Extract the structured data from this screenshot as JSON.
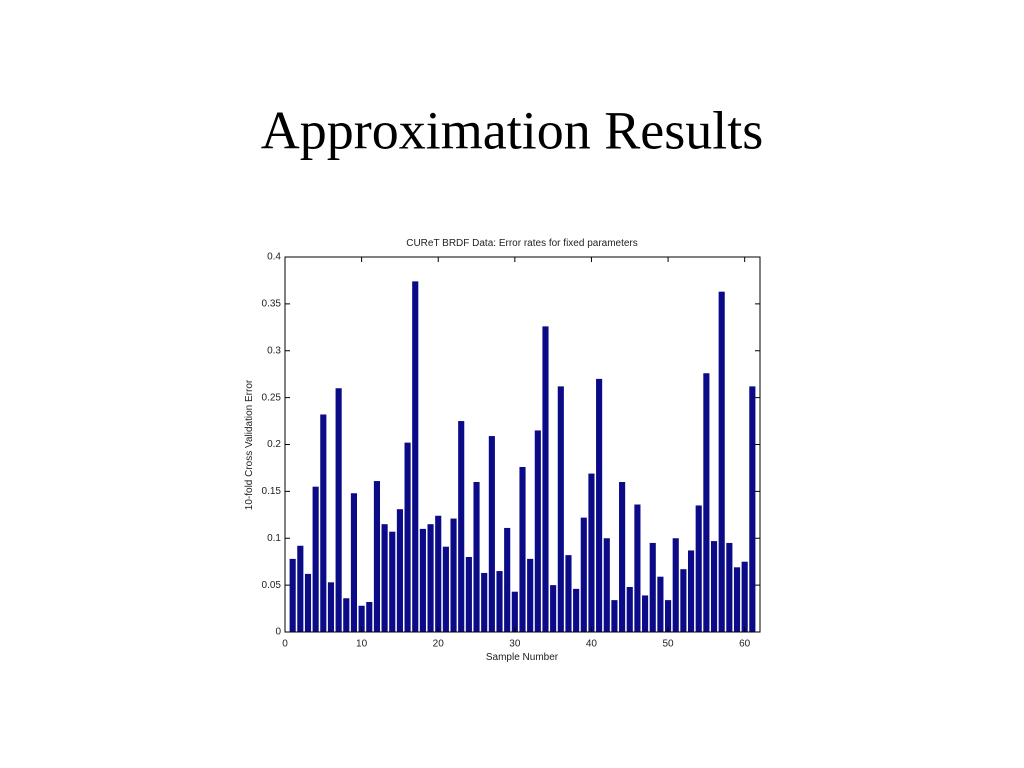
{
  "slide_title": "Approximation Results",
  "chart_data": {
    "type": "bar",
    "title": "CUReT BRDF Data: Error rates for fixed parameters",
    "x_label": "Sample Number",
    "y_label": "10-fold Cross Validation Error",
    "x": [
      1,
      2,
      3,
      4,
      5,
      6,
      7,
      8,
      9,
      10,
      11,
      12,
      13,
      14,
      15,
      16,
      17,
      18,
      19,
      20,
      21,
      22,
      23,
      24,
      25,
      26,
      27,
      28,
      29,
      30,
      31,
      32,
      33,
      34,
      35,
      36,
      37,
      38,
      39,
      40,
      41,
      42,
      43,
      44,
      45,
      46,
      47,
      48,
      49,
      50,
      51,
      52,
      53,
      54,
      55,
      56,
      57,
      58,
      59,
      60,
      61
    ],
    "values": [
      0.078,
      0.092,
      0.062,
      0.155,
      0.232,
      0.053,
      0.26,
      0.036,
      0.148,
      0.028,
      0.032,
      0.161,
      0.115,
      0.107,
      0.131,
      0.202,
      0.374,
      0.11,
      0.115,
      0.124,
      0.091,
      0.121,
      0.225,
      0.08,
      0.16,
      0.063,
      0.209,
      0.065,
      0.111,
      0.043,
      0.176,
      0.078,
      0.215,
      0.326,
      0.05,
      0.262,
      0.082,
      0.046,
      0.122,
      0.169,
      0.27,
      0.1,
      0.034,
      0.16,
      0.048,
      0.136,
      0.039,
      0.095,
      0.059,
      0.034,
      0.1,
      0.067,
      0.087,
      0.135,
      0.276,
      0.097,
      0.363,
      0.095,
      0.069,
      0.075,
      0.262
    ],
    "color": "#0b0b88",
    "xlim": [
      0,
      62
    ],
    "xticks": [
      0,
      10,
      20,
      30,
      40,
      50,
      60
    ],
    "ylim": [
      0,
      0.4
    ],
    "yticks": [
      0,
      0.05,
      0.1,
      0.15,
      0.2,
      0.25,
      0.3,
      0.35,
      0.4
    ],
    "grid": false
  }
}
